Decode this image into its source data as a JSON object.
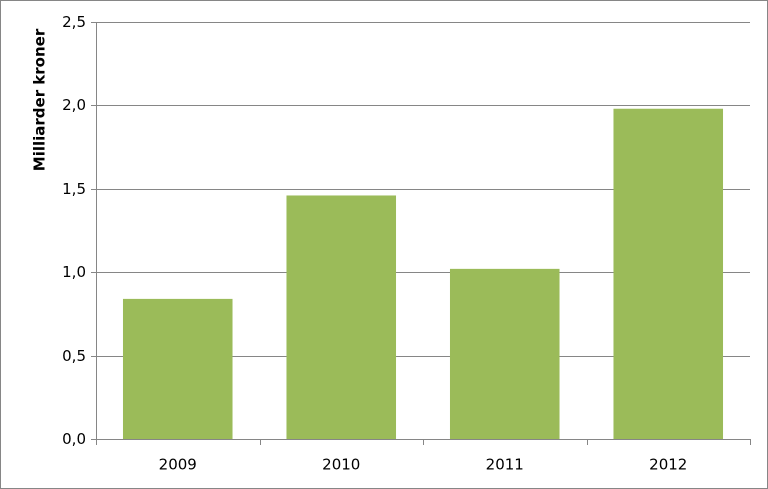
{
  "chart_data": {
    "type": "bar",
    "y_label": "Milliarder kroner",
    "categories": [
      "2009",
      "2010",
      "2011",
      "2012"
    ],
    "values": [
      0.84,
      1.46,
      1.02,
      1.98
    ],
    "color": "#9bbb59",
    "ylim": [
      0,
      2.5
    ],
    "yticks": [
      {
        "value": 0,
        "label": "0,0"
      },
      {
        "value": 0.5,
        "label": "0,5"
      },
      {
        "value": 1,
        "label": "1,0"
      },
      {
        "value": 1.5,
        "label": "1,5"
      },
      {
        "value": 2,
        "label": "2,0"
      },
      {
        "value": 2.5,
        "label": "2,5"
      }
    ],
    "grid": true
  }
}
